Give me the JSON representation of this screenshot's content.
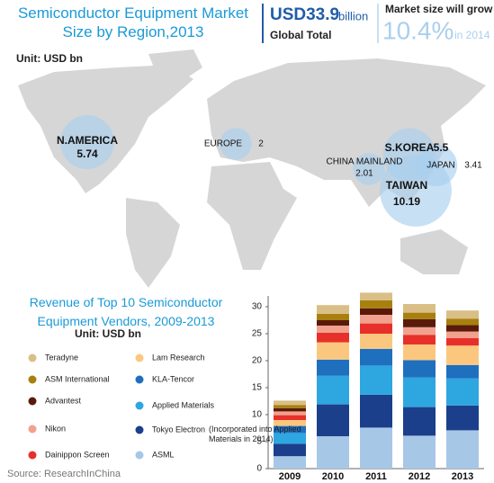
{
  "header": {
    "title": "Semiconductor Equipment Market Size by Region,2013",
    "total": "USD33.9",
    "total_unit": "billion",
    "total_label": "Global Total",
    "growth_label": "Market size will grow",
    "growth": "10.4%",
    "growth_year": "in 2014"
  },
  "map": {
    "unit": "Unit: USD bn",
    "regions": [
      {
        "name": "N.AMERICA",
        "value": 5.74
      },
      {
        "name": "EUROPE",
        "value": 2
      },
      {
        "name": "S.KOREA",
        "value": 5.5
      },
      {
        "name": "CHINA MAINLAND",
        "value": 2.01
      },
      {
        "name": "JAPAN",
        "value": 3.41
      },
      {
        "name": "TAIWAN",
        "value": 10.19
      }
    ]
  },
  "chart_data": {
    "type": "bar",
    "stacked": true,
    "title": "Revenue of Top 10 Semiconductor Equipment Vendors, 2009-2013",
    "unit": "Unit: USD bn",
    "annotation": "(Incorporated into Applied Materials in 2014)",
    "categories": [
      "2009",
      "2010",
      "2011",
      "2012",
      "2013"
    ],
    "series": [
      {
        "name": "ASML",
        "color": "#a7c7e7",
        "values": [
          2.3,
          6.0,
          7.6,
          6.1,
          7.1
        ]
      },
      {
        "name": "Tokyo Electron",
        "color": "#1b3f8b",
        "values": [
          2.3,
          5.9,
          6.1,
          5.3,
          4.6
        ]
      },
      {
        "name": "Applied Materials",
        "color": "#2ea6e0",
        "values": [
          2.0,
          5.3,
          5.4,
          5.5,
          5.0
        ]
      },
      {
        "name": "KLA-Tencor",
        "color": "#1f6fbf",
        "values": [
          1.3,
          3.0,
          3.1,
          3.2,
          2.5
        ]
      },
      {
        "name": "Lam Research",
        "color": "#fbc77f",
        "values": [
          1.1,
          3.2,
          2.8,
          2.9,
          3.6
        ]
      },
      {
        "name": "Dainippon Screen",
        "color": "#e8302a",
        "values": [
          0.9,
          1.8,
          1.9,
          1.8,
          1.4
        ]
      },
      {
        "name": "Nikon",
        "color": "#f1a18e",
        "values": [
          0.7,
          1.3,
          1.6,
          1.4,
          1.2
        ]
      },
      {
        "name": "Advantest",
        "color": "#5a1a0a",
        "values": [
          0.6,
          1.0,
          1.2,
          1.5,
          1.2
        ]
      },
      {
        "name": "ASM International",
        "color": "#a8800f",
        "values": [
          0.6,
          1.2,
          1.5,
          1.2,
          1.2
        ]
      },
      {
        "name": "Teradyne",
        "color": "#d9bf86",
        "values": [
          0.8,
          1.6,
          1.4,
          1.6,
          1.5
        ]
      }
    ],
    "ylim": [
      0,
      32
    ],
    "yticks": [
      0,
      5,
      10,
      15,
      20,
      25,
      30
    ]
  },
  "source": "Source: ResearchInChina"
}
